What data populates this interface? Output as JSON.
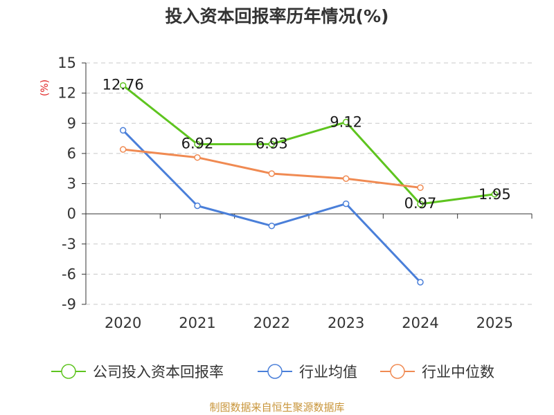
{
  "chart_data": {
    "type": "line",
    "title": "投入资本回报率历年情况(%)",
    "ylabel": "(%)",
    "categories": [
      "2020",
      "2021",
      "2022",
      "2023",
      "2024",
      "2025"
    ],
    "yticks": [
      "15",
      "12",
      "9",
      "6",
      "3",
      "0",
      "-3",
      "-6",
      "-9"
    ],
    "ylim": [
      -9,
      15
    ],
    "grid": true,
    "legend_position": "bottom",
    "series": [
      {
        "name": "公司投入资本回报率",
        "color": "#5ec41f",
        "values": [
          12.76,
          6.92,
          6.93,
          9.12,
          0.97,
          1.95
        ],
        "labels": [
          "12.76",
          "6.92",
          "6.93",
          "9.12",
          "0.97",
          "1.95"
        ]
      },
      {
        "name": "行业均值",
        "color": "#4a7fd9",
        "values": [
          8.3,
          0.8,
          -1.2,
          1.0,
          -6.8,
          null
        ]
      },
      {
        "name": "行业中位数",
        "color": "#f08a52",
        "values": [
          6.4,
          5.6,
          4.0,
          3.5,
          2.6,
          null
        ]
      }
    ]
  },
  "source": "制图数据来自恒生聚源数据库"
}
